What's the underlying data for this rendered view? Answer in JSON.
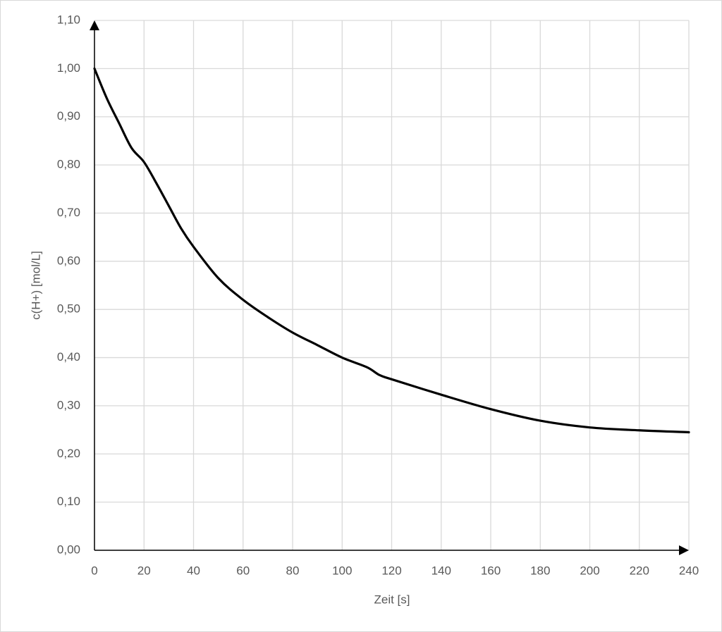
{
  "chart_data": {
    "type": "line",
    "x_label": "Zeit [s]",
    "y_label": "c(H+) [mol/L]",
    "x": [
      0,
      5,
      10,
      15,
      20,
      25,
      30,
      35,
      40,
      50,
      60,
      70,
      80,
      90,
      100,
      110,
      115,
      120,
      140,
      160,
      180,
      200,
      220,
      240
    ],
    "series": [
      {
        "color": "#000000",
        "values": [
          1.0,
          0.938,
          0.886,
          0.835,
          0.806,
          0.762,
          0.715,
          0.668,
          0.63,
          0.565,
          0.52,
          0.484,
          0.452,
          0.426,
          0.4,
          0.38,
          0.364,
          0.355,
          0.323,
          0.293,
          0.269,
          0.255,
          0.249,
          0.245
        ]
      }
    ],
    "xlim": [
      0,
      240
    ],
    "xticks": [
      0,
      20,
      40,
      60,
      80,
      100,
      120,
      140,
      160,
      180,
      200,
      220,
      240
    ],
    "ylim": [
      0,
      1.1
    ],
    "yticks": [
      {
        "value": 0,
        "label": "0,00"
      },
      {
        "value": 0.1,
        "label": "0,10"
      },
      {
        "value": 0.2,
        "label": "0,20"
      },
      {
        "value": 0.3,
        "label": "0,30"
      },
      {
        "value": 0.4,
        "label": "0,40"
      },
      {
        "value": 0.5,
        "label": "0,50"
      },
      {
        "value": 0.6,
        "label": "0,60"
      },
      {
        "value": 0.7,
        "label": "0,70"
      },
      {
        "value": 0.8,
        "label": "0,80"
      },
      {
        "value": 0.9,
        "label": "0,90"
      },
      {
        "value": 1.0,
        "label": "1,00"
      },
      {
        "value": 1.1,
        "label": "1,10"
      }
    ],
    "grid": true
  }
}
